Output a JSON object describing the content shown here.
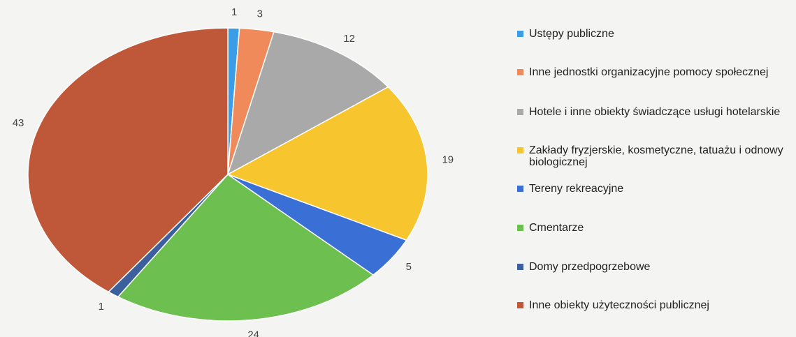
{
  "chart_data": {
    "type": "pie",
    "categories": [
      "Ustępy publiczne",
      "Inne jednostki organizacyjne pomocy społecznej",
      "Hotele i inne obiekty świadczące usługi hotelarskie",
      "Zakłady fryzjerskie, kosmetyczne, tatuażu i odnowy biologicznej",
      "Tereny rekreacyjne",
      "Cmentarze",
      "Domy przedpogrzebowe",
      "Inne obiekty użyteczności publicznej"
    ],
    "values": [
      1,
      3,
      12,
      19,
      5,
      24,
      1,
      43
    ],
    "colors": [
      "#3a9de6",
      "#f08a5a",
      "#a9a9a9",
      "#f7c52e",
      "#3a70d6",
      "#6dbf4f",
      "#3c5f9e",
      "#bf5838"
    ],
    "legend": "right"
  }
}
